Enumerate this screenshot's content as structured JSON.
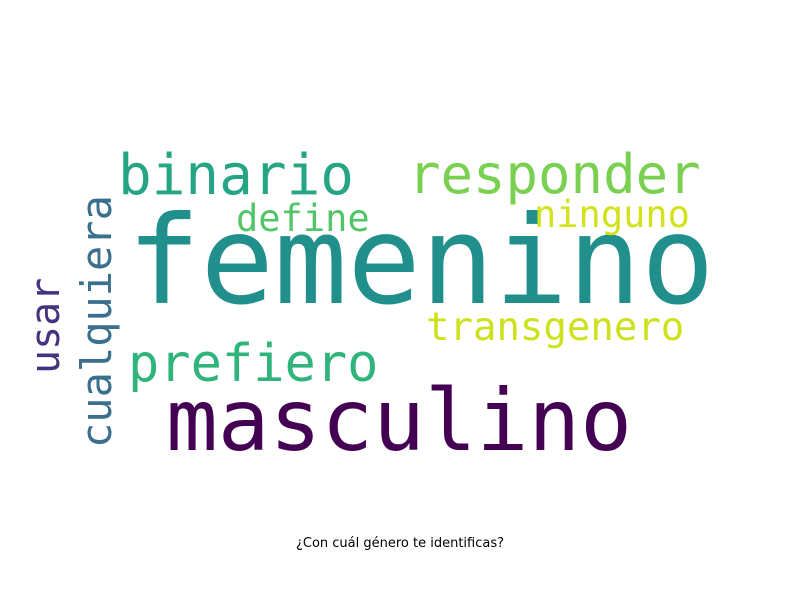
{
  "chart_data": {
    "type": "wordcloud",
    "title": "¿Con cuál género te identificas?",
    "words": [
      {
        "text": "femenino",
        "color": "#21908d"
      },
      {
        "text": "masculino",
        "color": "#440154"
      },
      {
        "text": "binario",
        "color": "#25a583"
      },
      {
        "text": "responder",
        "color": "#7ad151"
      },
      {
        "text": "prefiero",
        "color": "#2fb47c"
      },
      {
        "text": "define",
        "color": "#52c569"
      },
      {
        "text": "ninguno",
        "color": "#d2e21b"
      },
      {
        "text": "transgenero",
        "color": "#cde11d"
      },
      {
        "text": "cualquiera",
        "color": "#3b6f8e"
      },
      {
        "text": "usar",
        "color": "#46337f"
      }
    ]
  }
}
